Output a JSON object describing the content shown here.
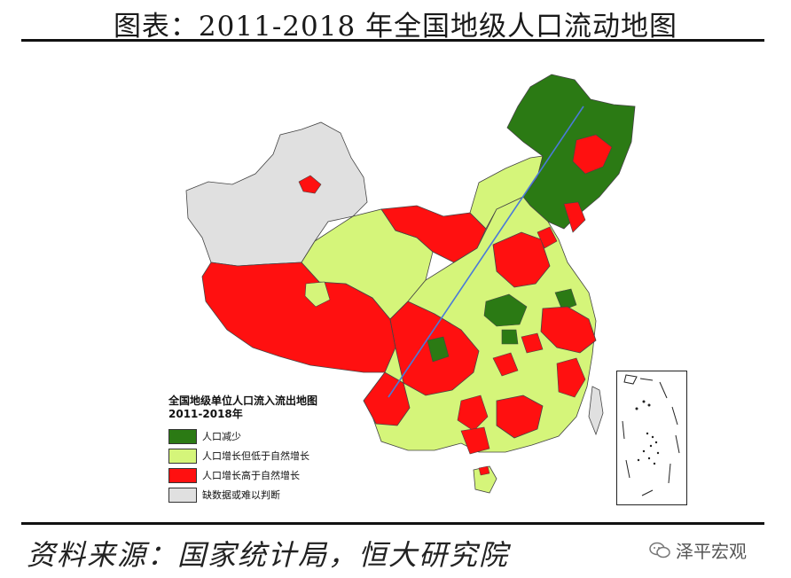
{
  "title": "图表：2011-2018 年全国地级人口流动地图",
  "legend": {
    "title": "全国地级单位人口流入流出地图",
    "subtitle": "2011-2018年",
    "items": [
      {
        "label": "人口减少",
        "color": "#2b7a14"
      },
      {
        "label": "人口增长但低于自然增长",
        "color": "#d5f57a"
      },
      {
        "label": "人口增长高于自然增长",
        "color": "#ff1010"
      },
      {
        "label": "缺数据或难以判断",
        "color": "#e0e0e0"
      }
    ]
  },
  "source": "资料来源：国家统计局，恒大研究院",
  "brand": "泽平宏观",
  "colors": {
    "green": "#2b7a14",
    "lightgreen": "#d5f57a",
    "red": "#ff1010",
    "gray": "#e0e0e0",
    "line": "#4a7ad8"
  }
}
